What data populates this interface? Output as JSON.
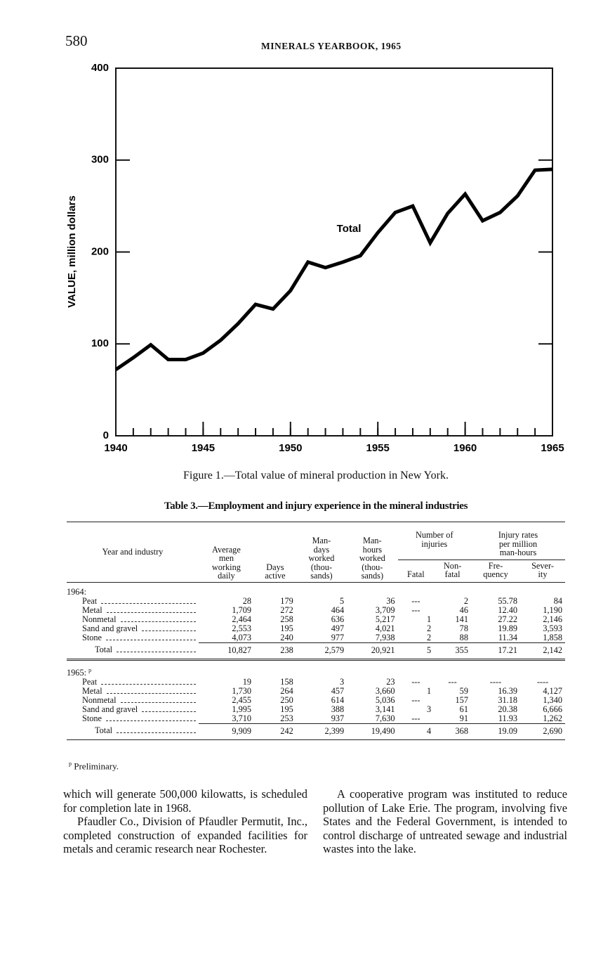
{
  "header": {
    "page_number": "580",
    "running_title": "MINERALS YEARBOOK, 1965"
  },
  "chart_data": {
    "type": "line",
    "y_label": "VALUE, million dollars",
    "x": [
      1940,
      1941,
      1942,
      1943,
      1944,
      1945,
      1946,
      1947,
      1948,
      1949,
      1950,
      1951,
      1952,
      1953,
      1954,
      1955,
      1956,
      1957,
      1958,
      1959,
      1960,
      1961,
      1962,
      1963,
      1964,
      1965
    ],
    "series": [
      {
        "name": "Total",
        "color": "#000000",
        "values": [
          72,
          85,
          99,
          83,
          83,
          90,
          104,
          122,
          143,
          138,
          158,
          189,
          183,
          189,
          196,
          221,
          243,
          250,
          210,
          242,
          263,
          234,
          243,
          261,
          289,
          290
        ]
      }
    ],
    "xlim": [
      1940,
      1965
    ],
    "xticks": [
      1940,
      1945,
      1950,
      1955,
      1960,
      1965
    ],
    "ylim": [
      0,
      400
    ],
    "yticks": [
      0,
      100,
      200,
      300,
      400
    ]
  },
  "figure_caption": "Figure 1.—Total value of mineral production in New York.",
  "table": {
    "title": "Table 3.—Employment and injury experience in the mineral industries",
    "columns": [
      [
        "Year and industry"
      ],
      [
        "Average",
        "men",
        "working",
        "daily"
      ],
      [
        "Days",
        "active"
      ],
      [
        "Man-",
        "days",
        "worked",
        "(thou-",
        "sands)"
      ],
      [
        "Man-",
        "hours",
        "worked",
        "(thou-",
        "sands)"
      ],
      [
        "Fatal"
      ],
      [
        "Non-",
        "fatal"
      ],
      [
        "Fre-",
        "quency"
      ],
      [
        "Sever-",
        "ity"
      ]
    ],
    "groups": [
      [
        "Number of",
        "injuries"
      ],
      [
        "Injury rates",
        "per million",
        "man-hours"
      ]
    ],
    "sections": [
      {
        "label": "1964:",
        "rows": [
          [
            "Peat",
            "28",
            "179",
            "5",
            "36",
            "---",
            "2",
            "55.78",
            "84"
          ],
          [
            "Metal",
            "1,709",
            "272",
            "464",
            "3,709",
            "---",
            "46",
            "12.40",
            "1,190"
          ],
          [
            "Nonmetal",
            "2,464",
            "258",
            "636",
            "5,217",
            "1",
            "141",
            "27.22",
            "2,146"
          ],
          [
            "Sand and gravel",
            "2,553",
            "195",
            "497",
            "4,021",
            "2",
            "78",
            "19.89",
            "3,593"
          ],
          [
            "Stone",
            "4,073",
            "240",
            "977",
            "7,938",
            "2",
            "88",
            "11.34",
            "1,858"
          ]
        ],
        "total": [
          "Total",
          "10,827",
          "238",
          "2,579",
          "20,921",
          "5",
          "355",
          "17.21",
          "2,142"
        ]
      },
      {
        "label": "1965:",
        "marker": "p",
        "rows": [
          [
            "Peat",
            "19",
            "158",
            "3",
            "23",
            "---",
            "---",
            "----",
            "----"
          ],
          [
            "Metal",
            "1,730",
            "264",
            "457",
            "3,660",
            "1",
            "59",
            "16.39",
            "4,127"
          ],
          [
            "Nonmetal",
            "2,455",
            "250",
            "614",
            "5,036",
            "---",
            "157",
            "31.18",
            "1,340"
          ],
          [
            "Sand and gravel",
            "1,995",
            "195",
            "388",
            "3,141",
            "3",
            "61",
            "20.38",
            "6,666"
          ],
          [
            "Stone",
            "3,710",
            "253",
            "937",
            "7,630",
            "---",
            "91",
            "11.93",
            "1,262"
          ]
        ],
        "total": [
          "Total",
          "9,909",
          "242",
          "2,399",
          "19,490",
          "4",
          "368",
          "19.09",
          "2,690"
        ]
      }
    ],
    "footnote": {
      "marker": "p",
      "text": "Preliminary."
    }
  },
  "body": {
    "left": [
      "which will generate 500,000 kilowatts, is scheduled for completion late in 1968.",
      "Pfaudler Co., Division of Pfaudler Permutit, Inc., completed construction of expanded facilities for metals and ceramic research near Rochester."
    ],
    "right": [
      "A cooperative program was instituted to reduce pollution of Lake Erie. The program, involving five States and the Federal Government, is intended to control discharge of untreated sewage and industrial wastes into the lake."
    ]
  }
}
